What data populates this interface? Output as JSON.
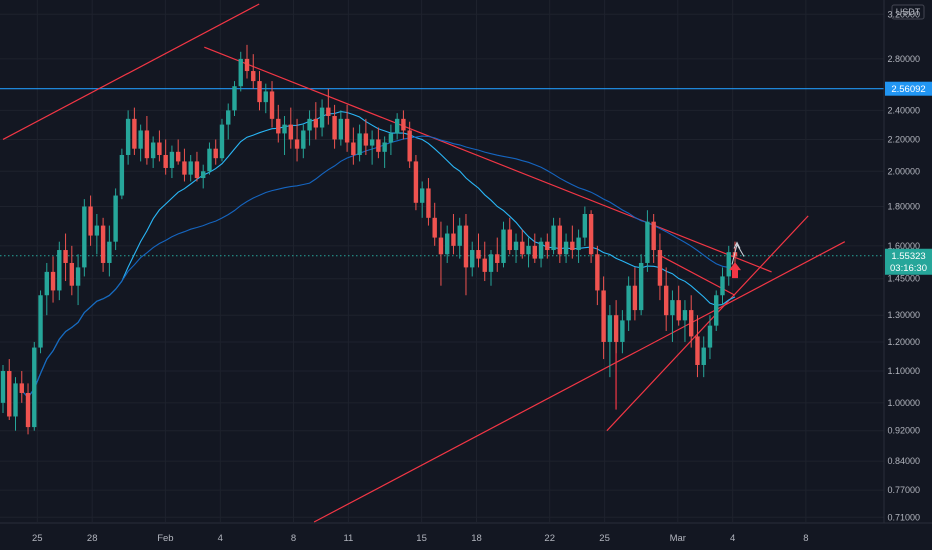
{
  "chart_data": {
    "type": "candlestick",
    "currency": "USDT",
    "scale": "log",
    "ylim": [
      0.7,
      3.3
    ],
    "y_ticks": [
      "3.20000",
      "2.80000",
      "2.40000",
      "2.20000",
      "2.00000",
      "1.80000",
      "1.60000",
      "1.45000",
      "1.30000",
      "1.20000",
      "1.10000",
      "1.00000",
      "0.92000",
      "0.84000",
      "0.77000",
      "0.71000"
    ],
    "x_ticks": [
      {
        "label": "25",
        "i": 1
      },
      {
        "label": "28",
        "i": 4
      },
      {
        "label": "Feb",
        "i": 8
      },
      {
        "label": "4",
        "i": 11
      },
      {
        "label": "8",
        "i": 15
      },
      {
        "label": "11",
        "i": 18
      },
      {
        "label": "15",
        "i": 22
      },
      {
        "label": "18",
        "i": 25
      },
      {
        "label": "22",
        "i": 29
      },
      {
        "label": "25",
        "i": 32
      },
      {
        "label": "Mar",
        "i": 36
      },
      {
        "label": "4",
        "i": 39
      },
      {
        "label": "8",
        "i": 43
      }
    ],
    "horizontal_line": {
      "value": 2.56092,
      "label": "2.56092",
      "color": "#2196f3"
    },
    "current_price": {
      "value": 1.55323,
      "label": "1.55323",
      "countdown": "03:16:30",
      "color": "#26a69a"
    },
    "candles_ohlc": [
      [
        1.0,
        1.12,
        0.97,
        1.1
      ],
      [
        1.1,
        1.14,
        0.95,
        0.96
      ],
      [
        0.96,
        1.08,
        0.92,
        1.06
      ],
      [
        1.06,
        1.1,
        1.0,
        1.03
      ],
      [
        1.03,
        1.06,
        0.91,
        0.93
      ],
      [
        0.93,
        1.2,
        0.92,
        1.18
      ],
      [
        1.18,
        1.4,
        1.16,
        1.38
      ],
      [
        1.38,
        1.52,
        1.3,
        1.48
      ],
      [
        1.48,
        1.55,
        1.35,
        1.4
      ],
      [
        1.4,
        1.62,
        1.36,
        1.58
      ],
      [
        1.58,
        1.66,
        1.44,
        1.52
      ],
      [
        1.52,
        1.6,
        1.38,
        1.42
      ],
      [
        1.42,
        1.56,
        1.34,
        1.5
      ],
      [
        1.5,
        1.84,
        1.46,
        1.8
      ],
      [
        1.8,
        1.86,
        1.6,
        1.65
      ],
      [
        1.65,
        1.76,
        1.56,
        1.7
      ],
      [
        1.7,
        1.74,
        1.48,
        1.52
      ],
      [
        1.52,
        1.7,
        1.46,
        1.62
      ],
      [
        1.62,
        1.9,
        1.58,
        1.86
      ],
      [
        1.86,
        2.14,
        1.84,
        2.1
      ],
      [
        2.1,
        2.4,
        2.04,
        2.34
      ],
      [
        2.34,
        2.42,
        2.1,
        2.14
      ],
      [
        2.14,
        2.3,
        2.06,
        2.26
      ],
      [
        2.26,
        2.36,
        2.04,
        2.08
      ],
      [
        2.08,
        2.22,
        2.02,
        2.18
      ],
      [
        2.18,
        2.26,
        2.06,
        2.1
      ],
      [
        2.1,
        2.2,
        1.98,
        2.02
      ],
      [
        2.02,
        2.16,
        1.96,
        2.12
      ],
      [
        2.12,
        2.2,
        2.04,
        2.06
      ],
      [
        2.06,
        2.14,
        1.94,
        1.98
      ],
      [
        1.98,
        2.1,
        1.94,
        2.06
      ],
      [
        2.06,
        2.12,
        1.94,
        1.96
      ],
      [
        1.96,
        2.04,
        1.9,
        2.0
      ],
      [
        2.0,
        2.18,
        1.98,
        2.14
      ],
      [
        2.14,
        2.2,
        2.04,
        2.08
      ],
      [
        2.08,
        2.34,
        2.06,
        2.3
      ],
      [
        2.3,
        2.45,
        2.2,
        2.4
      ],
      [
        2.4,
        2.62,
        2.36,
        2.58
      ],
      [
        2.58,
        2.86,
        2.54,
        2.8
      ],
      [
        2.8,
        2.92,
        2.64,
        2.7
      ],
      [
        2.7,
        2.84,
        2.56,
        2.62
      ],
      [
        2.62,
        2.7,
        2.4,
        2.46
      ],
      [
        2.46,
        2.6,
        2.38,
        2.54
      ],
      [
        2.54,
        2.62,
        2.28,
        2.34
      ],
      [
        2.34,
        2.44,
        2.18,
        2.24
      ],
      [
        2.24,
        2.36,
        2.1,
        2.3
      ],
      [
        2.3,
        2.42,
        2.14,
        2.2
      ],
      [
        2.2,
        2.34,
        2.06,
        2.14
      ],
      [
        2.14,
        2.3,
        2.08,
        2.26
      ],
      [
        2.26,
        2.4,
        2.16,
        2.34
      ],
      [
        2.34,
        2.46,
        2.2,
        2.28
      ],
      [
        2.28,
        2.48,
        2.22,
        2.42
      ],
      [
        2.42,
        2.56,
        2.3,
        2.36
      ],
      [
        2.36,
        2.44,
        2.14,
        2.2
      ],
      [
        2.2,
        2.4,
        2.16,
        2.34
      ],
      [
        2.34,
        2.44,
        2.12,
        2.18
      ],
      [
        2.18,
        2.28,
        2.04,
        2.1
      ],
      [
        2.1,
        2.3,
        2.06,
        2.24
      ],
      [
        2.24,
        2.34,
        2.1,
        2.16
      ],
      [
        2.16,
        2.26,
        2.04,
        2.2
      ],
      [
        2.2,
        2.28,
        2.08,
        2.12
      ],
      [
        2.12,
        2.22,
        2.02,
        2.18
      ],
      [
        2.18,
        2.3,
        2.1,
        2.24
      ],
      [
        2.24,
        2.38,
        2.2,
        2.34
      ],
      [
        2.34,
        2.4,
        2.2,
        2.26
      ],
      [
        2.26,
        2.32,
        2.02,
        2.06
      ],
      [
        2.06,
        2.1,
        1.78,
        1.82
      ],
      [
        1.82,
        1.94,
        1.74,
        1.9
      ],
      [
        1.9,
        1.96,
        1.7,
        1.74
      ],
      [
        1.74,
        1.82,
        1.6,
        1.64
      ],
      [
        1.64,
        1.72,
        1.42,
        1.56
      ],
      [
        1.56,
        1.7,
        1.52,
        1.66
      ],
      [
        1.66,
        1.76,
        1.56,
        1.6
      ],
      [
        1.6,
        1.74,
        1.54,
        1.7
      ],
      [
        1.7,
        1.76,
        1.38,
        1.5
      ],
      [
        1.5,
        1.62,
        1.46,
        1.58
      ],
      [
        1.58,
        1.66,
        1.5,
        1.54
      ],
      [
        1.54,
        1.62,
        1.44,
        1.48
      ],
      [
        1.48,
        1.58,
        1.42,
        1.56
      ],
      [
        1.56,
        1.64,
        1.48,
        1.52
      ],
      [
        1.52,
        1.72,
        1.5,
        1.68
      ],
      [
        1.68,
        1.74,
        1.56,
        1.58
      ],
      [
        1.58,
        1.66,
        1.52,
        1.62
      ],
      [
        1.62,
        1.68,
        1.54,
        1.56
      ],
      [
        1.56,
        1.64,
        1.5,
        1.6
      ],
      [
        1.6,
        1.66,
        1.52,
        1.54
      ],
      [
        1.54,
        1.64,
        1.5,
        1.62
      ],
      [
        1.62,
        1.66,
        1.54,
        1.58
      ],
      [
        1.58,
        1.74,
        1.56,
        1.7
      ],
      [
        1.7,
        1.74,
        1.52,
        1.56
      ],
      [
        1.56,
        1.66,
        1.52,
        1.62
      ],
      [
        1.62,
        1.7,
        1.54,
        1.58
      ],
      [
        1.58,
        1.68,
        1.52,
        1.64
      ],
      [
        1.64,
        1.8,
        1.6,
        1.76
      ],
      [
        1.76,
        1.78,
        1.52,
        1.56
      ],
      [
        1.56,
        1.6,
        1.34,
        1.4
      ],
      [
        1.4,
        1.46,
        1.14,
        1.2
      ],
      [
        1.2,
        1.34,
        1.08,
        1.3
      ],
      [
        1.3,
        1.36,
        1.16,
        1.2
      ],
      [
        1.2,
        1.32,
        1.16,
        1.28
      ],
      [
        1.28,
        1.46,
        1.24,
        1.42
      ],
      [
        1.42,
        1.5,
        1.28,
        1.32
      ],
      [
        1.32,
        1.56,
        1.3,
        1.52
      ],
      [
        1.52,
        1.78,
        1.48,
        1.72
      ],
      [
        1.72,
        1.76,
        1.52,
        1.58
      ],
      [
        1.58,
        1.66,
        1.36,
        1.42
      ],
      [
        1.42,
        1.5,
        1.24,
        1.3
      ],
      [
        1.3,
        1.4,
        1.2,
        1.36
      ],
      [
        1.36,
        1.42,
        1.26,
        1.28
      ],
      [
        1.28,
        1.36,
        1.2,
        1.32
      ],
      [
        1.32,
        1.38,
        1.18,
        1.22
      ],
      [
        1.22,
        1.3,
        1.08,
        1.12
      ],
      [
        1.12,
        1.22,
        1.08,
        1.18
      ],
      [
        1.18,
        1.3,
        1.14,
        1.26
      ],
      [
        1.26,
        1.4,
        1.24,
        1.38
      ],
      [
        1.38,
        1.5,
        1.34,
        1.46
      ],
      [
        1.46,
        1.6,
        1.42,
        1.57
      ],
      [
        1.57,
        1.62,
        1.46,
        1.55
      ]
    ],
    "moving_averages": [
      {
        "color": "#29b6f6",
        "period": 20
      },
      {
        "color": "#1565c0",
        "period": 50
      }
    ],
    "trendlines": [
      {
        "color": "#f23645",
        "points": [
          [
            0,
            2.2
          ],
          [
            14,
            3.3
          ]
        ]
      },
      {
        "color": "#f23645",
        "points": [
          [
            11,
            2.9
          ],
          [
            42,
            1.48
          ]
        ]
      },
      {
        "color": "#f23645",
        "points": [
          [
            17,
            0.7
          ],
          [
            46,
            1.62
          ]
        ]
      },
      {
        "color": "#f23645",
        "points": [
          [
            33,
            0.92
          ],
          [
            44,
            1.75
          ]
        ]
      },
      {
        "color": "#f23645",
        "points": [
          [
            36,
            1.55
          ],
          [
            40,
            1.38
          ]
        ]
      },
      {
        "color": "#f23645",
        "points": [
          [
            33.5,
            0.98
          ],
          [
            33.5,
            1.22
          ]
        ]
      }
    ],
    "annotations": [
      {
        "type": "up-arrow",
        "color": "#f23645",
        "x_index": 40,
        "price": 1.47
      }
    ]
  }
}
